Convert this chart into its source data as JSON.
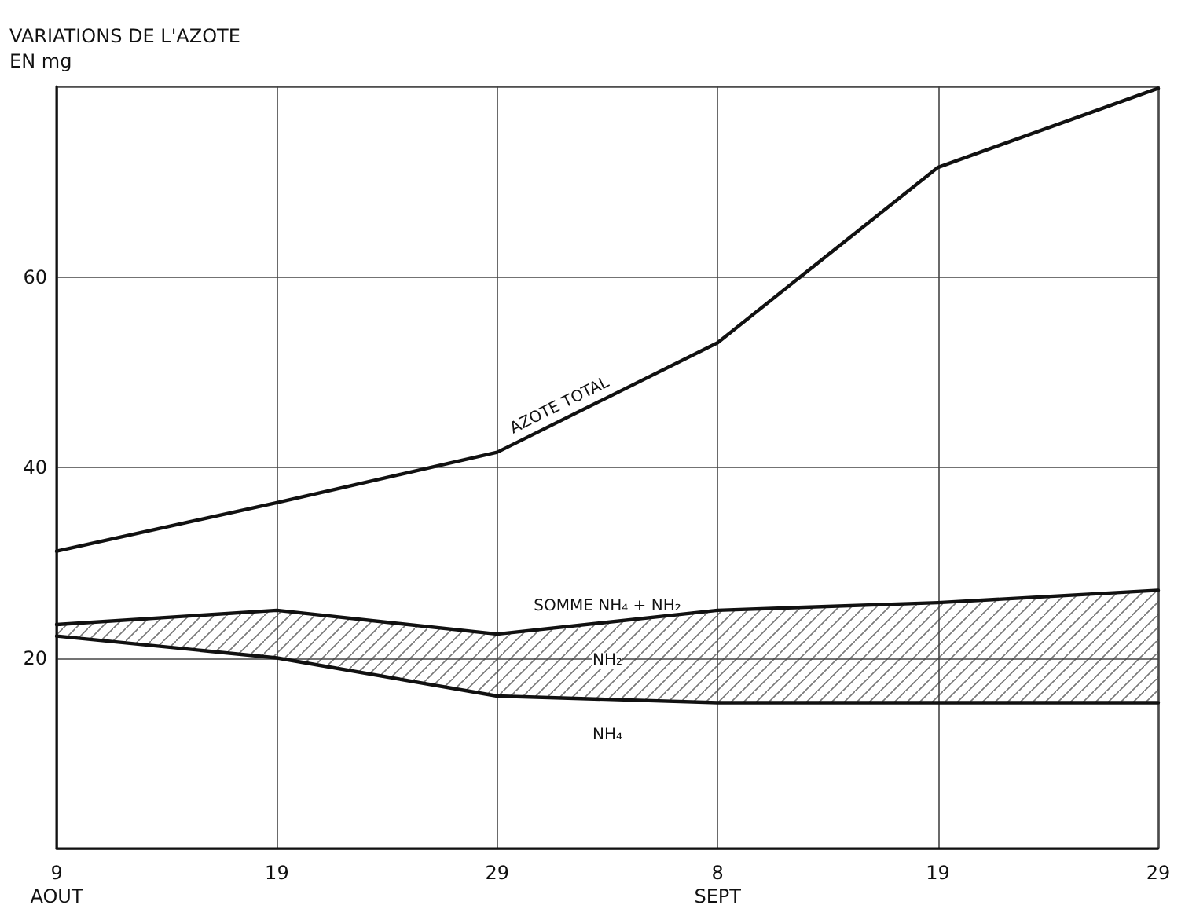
{
  "chart_data": {
    "type": "line",
    "ylabel": "VARIATIONS DE L'AZOTE\nEN mg",
    "categories": [
      "9\nAOUT",
      "19",
      "29",
      "8\nSEPT",
      "19",
      "29"
    ],
    "series": [
      {
        "name": "AZOTE TOTAL",
        "color": "#111111",
        "values": [
          31.2,
          36.3,
          41.6,
          53.1,
          71.5,
          79.8
        ]
      },
      {
        "name": "SOMME NH₄ + NH₂",
        "color": "#111111",
        "values": [
          23.5,
          25,
          22.5,
          25,
          25.8,
          27.1
        ]
      },
      {
        "name": "NH₄",
        "color": "#111111",
        "values": [
          22.3,
          20,
          16,
          15.3,
          15.3,
          15.3
        ]
      }
    ],
    "annotations": [
      "NH₂"
    ],
    "ylim": [
      0,
      80
    ],
    "yticks": [
      20,
      40,
      60
    ],
    "grid": true,
    "legend": false,
    "marker": "none",
    "line_style": "solid"
  }
}
